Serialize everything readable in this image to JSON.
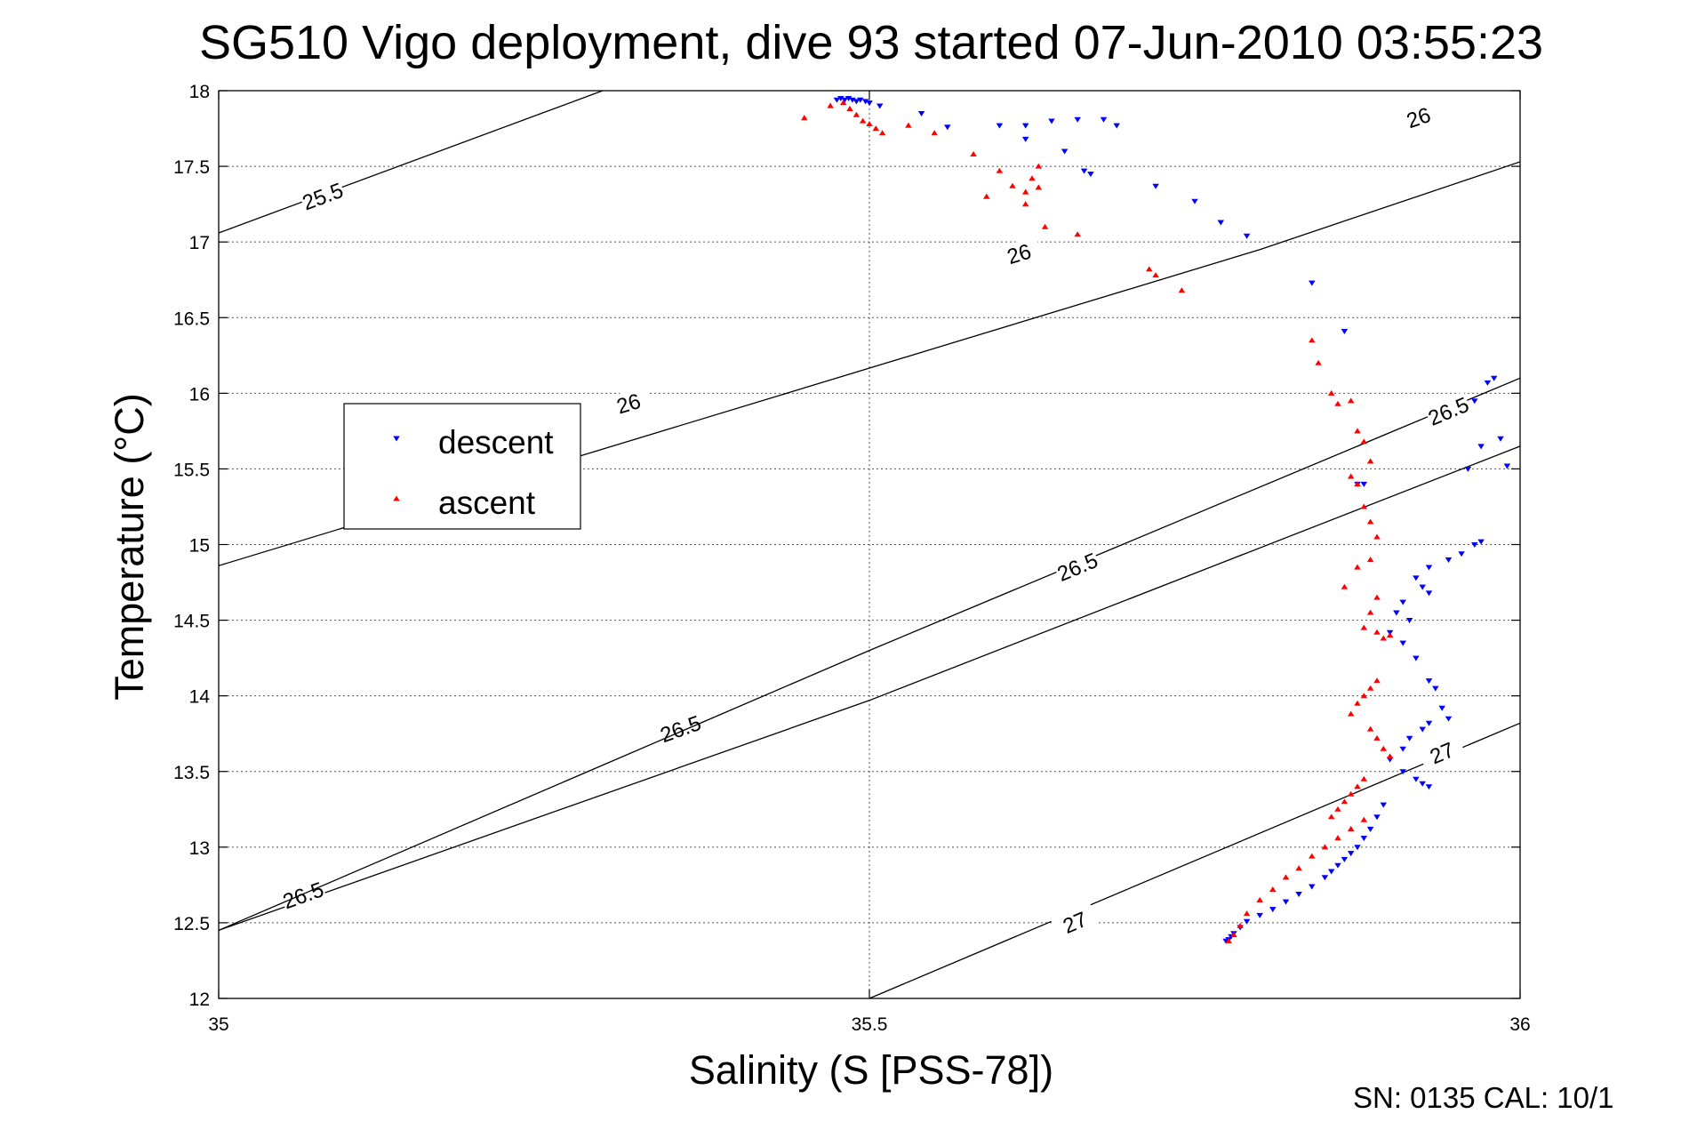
{
  "chart_data": {
    "type": "scatter",
    "title": "SG510 Vigo deployment, dive 93 started 07-Jun-2010 03:55:23",
    "xlabel": "Salinity (S [PSS-78])",
    "ylabel": "Temperature (°C)",
    "xlim": [
      35,
      36
    ],
    "ylim": [
      12,
      18
    ],
    "x_ticks": [
      35,
      35.5,
      36
    ],
    "x_tick_labels": [
      "35",
      "35.5",
      "36"
    ],
    "y_ticks": [
      12,
      12.5,
      13,
      13.5,
      14,
      14.5,
      15,
      15.5,
      16,
      16.5,
      17,
      17.5,
      18
    ],
    "y_tick_labels": [
      "12",
      "12.5",
      "13",
      "13.5",
      "14",
      "14.5",
      "15",
      "15.5",
      "16",
      "16.5",
      "17",
      "17.5",
      "18"
    ],
    "grid": true,
    "legend_position": "left",
    "footer": "SN: 0135  CAL: 10/1",
    "density_contours": [
      {
        "points": [
          [
            35,
            17.06
          ],
          [
            35.295,
            18
          ]
        ],
        "labels": [
          {
            "text": "25.5",
            "x": 35.08,
            "y": 17.3
          }
        ]
      },
      {
        "points": [
          [
            35,
            14.86
          ],
          [
            35.8,
            16.95
          ],
          [
            36,
            17.53
          ]
        ],
        "labels": [
          {
            "text": "26",
            "x": 35.315,
            "y": 15.93
          },
          {
            "text": "26",
            "x": 35.615,
            "y": 16.92
          },
          {
            "text": "26",
            "x": 35.922,
            "y": 17.82
          }
        ]
      },
      {
        "points": [
          [
            35,
            12.45
          ],
          [
            35.5,
            13.97
          ],
          [
            36,
            15.65
          ]
        ],
        "labels": [
          {
            "text": "25.5",
            "x": -1,
            "y": -1
          },
          {
            "text": "26.5",
            "x": 35.065,
            "y": 12.68
          },
          {
            "text": "26.5",
            "x": 35.355,
            "y": 13.78
          }
        ]
      },
      {
        "points": [
          [
            35,
            12.45
          ],
          [
            35.5,
            14.3
          ],
          [
            36,
            16.1
          ]
        ],
        "labels": [
          {
            "text": "26.5",
            "x": 35.66,
            "y": 14.85
          },
          {
            "text": "26.5",
            "x": 35.945,
            "y": 15.88
          }
        ]
      },
      {
        "points": [
          [
            35.5,
            12.0
          ],
          [
            36,
            13.82
          ]
        ],
        "labels": [
          {
            "text": "27",
            "x": 35.658,
            "y": 12.5
          },
          {
            "text": "27",
            "x": 35.94,
            "y": 13.62
          }
        ]
      }
    ],
    "series": [
      {
        "name": "descent",
        "color": "#0000ff",
        "marker": "triangle-down",
        "x": [
          35.475,
          35.478,
          35.481,
          35.484,
          35.487,
          35.49,
          35.493,
          35.497,
          35.5,
          35.508,
          35.54,
          35.56,
          35.6,
          35.62,
          35.64,
          35.66,
          35.68,
          35.69,
          35.665,
          35.62,
          35.65,
          35.67,
          35.72,
          35.75,
          35.77,
          35.79,
          35.84,
          35.865,
          35.875,
          35.98,
          35.975,
          35.965,
          35.985,
          35.99,
          35.97,
          35.96,
          35.88,
          35.97,
          35.965,
          35.955,
          35.945,
          35.93,
          35.92,
          35.925,
          35.93,
          35.91,
          35.905,
          35.915,
          35.9,
          35.91,
          35.92,
          35.93,
          35.935,
          35.94,
          35.945,
          35.93,
          35.925,
          35.915,
          35.91,
          35.9,
          35.91,
          35.92,
          35.925,
          35.93,
          35.895,
          35.89,
          35.885,
          35.88,
          35.875,
          35.87,
          35.865,
          35.86,
          35.855,
          35.85,
          35.84,
          35.83,
          35.82,
          35.81,
          35.8,
          35.79,
          35.785,
          35.78,
          35.778,
          35.776,
          35.774
        ],
        "y": [
          17.94,
          17.95,
          17.94,
          17.95,
          17.94,
          17.93,
          17.94,
          17.93,
          17.92,
          17.9,
          17.85,
          17.76,
          17.77,
          17.77,
          17.8,
          17.81,
          17.81,
          17.77,
          17.47,
          17.68,
          17.6,
          17.45,
          17.37,
          17.27,
          17.13,
          17.04,
          16.73,
          16.41,
          15.4,
          16.1,
          16.07,
          15.95,
          15.7,
          15.52,
          15.65,
          15.5,
          15.4,
          15.02,
          15.0,
          14.94,
          14.9,
          14.85,
          14.78,
          14.72,
          14.68,
          14.62,
          14.55,
          14.5,
          14.42,
          14.35,
          14.25,
          14.1,
          14.05,
          13.92,
          13.85,
          13.82,
          13.78,
          13.72,
          13.65,
          13.58,
          13.5,
          13.45,
          13.42,
          13.4,
          13.28,
          13.2,
          13.12,
          13.06,
          13.0,
          12.96,
          12.92,
          12.88,
          12.84,
          12.8,
          12.74,
          12.69,
          12.64,
          12.59,
          12.55,
          12.51,
          12.47,
          12.43,
          12.41,
          12.39,
          12.38
        ]
      },
      {
        "name": "ascent",
        "color": "#ff0000",
        "marker": "triangle-up",
        "x": [
          35.45,
          35.47,
          35.48,
          35.485,
          35.49,
          35.495,
          35.5,
          35.505,
          35.51,
          35.53,
          35.55,
          35.58,
          35.6,
          35.59,
          35.62,
          35.625,
          35.63,
          35.62,
          35.63,
          35.61,
          35.635,
          35.66,
          35.715,
          35.72,
          35.74,
          35.84,
          35.845,
          35.855,
          35.86,
          35.87,
          35.875,
          35.88,
          35.885,
          35.87,
          35.875,
          35.88,
          35.885,
          35.89,
          35.885,
          35.875,
          35.865,
          35.89,
          35.885,
          35.88,
          35.89,
          35.9,
          35.895,
          35.89,
          35.885,
          35.88,
          35.875,
          35.87,
          35.885,
          35.89,
          35.895,
          35.9,
          35.88,
          35.875,
          35.87,
          35.865,
          35.86,
          35.855,
          35.88,
          35.87,
          35.86,
          35.85,
          35.84,
          35.83,
          35.82,
          35.81,
          35.8,
          35.79,
          35.785,
          35.78,
          35.776
        ],
        "y": [
          17.82,
          17.9,
          17.92,
          17.88,
          17.84,
          17.8,
          17.78,
          17.75,
          17.72,
          17.77,
          17.72,
          17.58,
          17.47,
          17.3,
          17.33,
          17.42,
          17.5,
          17.25,
          17.36,
          17.37,
          17.1,
          17.05,
          16.82,
          16.78,
          16.68,
          16.35,
          16.2,
          16.0,
          15.93,
          15.95,
          15.75,
          15.68,
          15.55,
          15.45,
          15.4,
          15.25,
          15.15,
          15.05,
          14.9,
          14.85,
          14.72,
          14.65,
          14.55,
          14.45,
          14.42,
          14.4,
          14.38,
          14.1,
          14.05,
          14.0,
          13.95,
          13.88,
          13.78,
          13.72,
          13.65,
          13.6,
          13.45,
          13.4,
          13.35,
          13.3,
          13.25,
          13.2,
          13.18,
          13.12,
          13.06,
          13.0,
          12.94,
          12.86,
          12.8,
          12.72,
          12.65,
          12.56,
          12.48,
          12.42,
          12.38
        ]
      }
    ]
  }
}
